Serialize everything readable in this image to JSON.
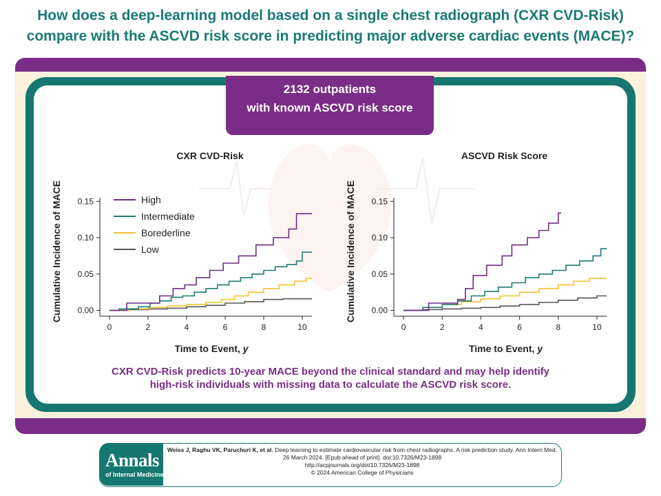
{
  "title": {
    "line1": "How does a deep-learning model based on a single chest radiograph (CXR CVD-Risk)",
    "line2": "compare with the ASCVD risk score in predicting major adverse cardiac events (MACE)?"
  },
  "header": {
    "line1": "2132 outpatients",
    "line2": "with known ASCVD risk score"
  },
  "conclusion": {
    "line1": "CXR CVD-Risk predicts 10-year MACE beyond the clinical standard and may help identify",
    "line2": "high-risk individuals with missing data to calculate the ASCVD risk score."
  },
  "colors": {
    "high": "#6e2c83",
    "intermediate": "#1b7a72",
    "borderline": "#f6c22b",
    "low": "#555555",
    "teal": "#15776f",
    "purple": "#7a2d86"
  },
  "chart_data": [
    {
      "type": "line",
      "title": "CXR CVD-Risk",
      "xlabel": "Time to Event, y",
      "ylabel": "Cumulative Incidence of MACE",
      "xlim": [
        -0.5,
        10.5
      ],
      "ylim": [
        -0.008,
        0.155
      ],
      "xticks": [
        0,
        2,
        4,
        6,
        8,
        10
      ],
      "yticks": [
        0.0,
        0.05,
        0.1,
        0.15
      ],
      "ytick_labels": [
        "0.00",
        "0.05",
        "0.10",
        "0.15"
      ],
      "legend": "top-left",
      "series": [
        {
          "name": "High",
          "color_key": "high",
          "x": [
            0,
            0.9,
            2.3,
            2.6,
            3.3,
            3.9,
            4.5,
            5.2,
            5.9,
            6.7,
            7.6,
            8.5,
            9.3,
            9.7,
            10.5
          ],
          "y": [
            0,
            0.01,
            0.01,
            0.02,
            0.03,
            0.035,
            0.045,
            0.055,
            0.065,
            0.075,
            0.09,
            0.1,
            0.112,
            0.133,
            0.133
          ]
        },
        {
          "name": "Intermediate",
          "color_key": "intermediate",
          "x": [
            0,
            0.5,
            1.5,
            2.1,
            2.6,
            3.2,
            3.8,
            4.4,
            5.0,
            5.6,
            6.2,
            6.8,
            7.4,
            8.0,
            8.6,
            9.2,
            9.7,
            10.0,
            10.5
          ],
          "y": [
            0,
            0.002,
            0.005,
            0.01,
            0.013,
            0.018,
            0.02,
            0.025,
            0.03,
            0.035,
            0.04,
            0.045,
            0.05,
            0.055,
            0.06,
            0.063,
            0.068,
            0.08,
            0.08
          ]
        },
        {
          "name": "Borederline",
          "color_key": "borderline",
          "x": [
            0,
            1,
            2,
            3,
            4,
            5,
            5.8,
            6.5,
            7.2,
            8.0,
            8.8,
            9.6,
            10.2,
            10.5
          ],
          "y": [
            0,
            0.002,
            0.004,
            0.006,
            0.008,
            0.011,
            0.015,
            0.02,
            0.025,
            0.03,
            0.035,
            0.04,
            0.044,
            0.044
          ]
        },
        {
          "name": "Low",
          "color_key": "low",
          "x": [
            0,
            1,
            2,
            3,
            4,
            5,
            6,
            7,
            8,
            9,
            10.5
          ],
          "y": [
            0,
            0.001,
            0.002,
            0.003,
            0.005,
            0.007,
            0.01,
            0.012,
            0.015,
            0.016,
            0.016
          ]
        }
      ]
    },
    {
      "type": "line",
      "title": "ASCVD Risk Score",
      "xlabel": "Time to Event, y",
      "ylabel": "Cumulative Incidence of MACE",
      "xlim": [
        -0.5,
        10.5
      ],
      "ylim": [
        -0.008,
        0.155
      ],
      "xticks": [
        0,
        2,
        4,
        6,
        8,
        10
      ],
      "yticks": [
        0.0,
        0.05,
        0.1,
        0.15
      ],
      "ytick_labels": [
        "0.00",
        "0.05",
        "0.10",
        "0.15"
      ],
      "legend": "none",
      "series": [
        {
          "name": "High",
          "color_key": "high",
          "x": [
            0,
            1.3,
            2.8,
            3.2,
            3.6,
            4.3,
            5.1,
            5.6,
            6.4,
            7.0,
            7.5,
            8.0,
            8.15
          ],
          "y": [
            0,
            0.01,
            0.015,
            0.03,
            0.048,
            0.062,
            0.075,
            0.09,
            0.1,
            0.11,
            0.12,
            0.134,
            0.134
          ]
        },
        {
          "name": "Intermediate",
          "color_key": "intermediate",
          "x": [
            0,
            1,
            2,
            2.8,
            3.5,
            4.2,
            4.9,
            5.6,
            6.3,
            7.0,
            7.7,
            8.4,
            9.1,
            9.8,
            10.2,
            10.5
          ],
          "y": [
            0,
            0.004,
            0.008,
            0.013,
            0.02,
            0.026,
            0.032,
            0.038,
            0.045,
            0.05,
            0.055,
            0.062,
            0.068,
            0.075,
            0.085,
            0.085
          ]
        },
        {
          "name": "Borederline",
          "color_key": "borderline",
          "x": [
            0,
            1,
            2,
            3,
            4,
            5,
            6,
            7,
            8,
            8.8,
            9.6,
            10.5
          ],
          "y": [
            0,
            0.004,
            0.008,
            0.012,
            0.016,
            0.02,
            0.025,
            0.03,
            0.035,
            0.04,
            0.044,
            0.044
          ]
        },
        {
          "name": "Low",
          "color_key": "low",
          "x": [
            0,
            1,
            2,
            3,
            4,
            5,
            6,
            7,
            8,
            9,
            10,
            10.5
          ],
          "y": [
            0,
            0.001,
            0.002,
            0.003,
            0.004,
            0.006,
            0.008,
            0.011,
            0.014,
            0.017,
            0.02,
            0.02
          ]
        }
      ]
    }
  ],
  "citation": {
    "logo_main": "Annals",
    "logo_sub": "of Internal Medicine®",
    "authors": "Weiss J, Raghu VK, Paruchuri K, et al.",
    "text": " Deep learning to estimate cardiovascular risk from chest radiographs. A risk prediction study. Ann Intern Med. 26 March 2024. [Epub ahead of print]. doi:10.7326/M23-1898",
    "url": "http://acpjournals.org/doi/10.7326/M23-1898",
    "copyright": "© 2024 American College of Physicians"
  }
}
